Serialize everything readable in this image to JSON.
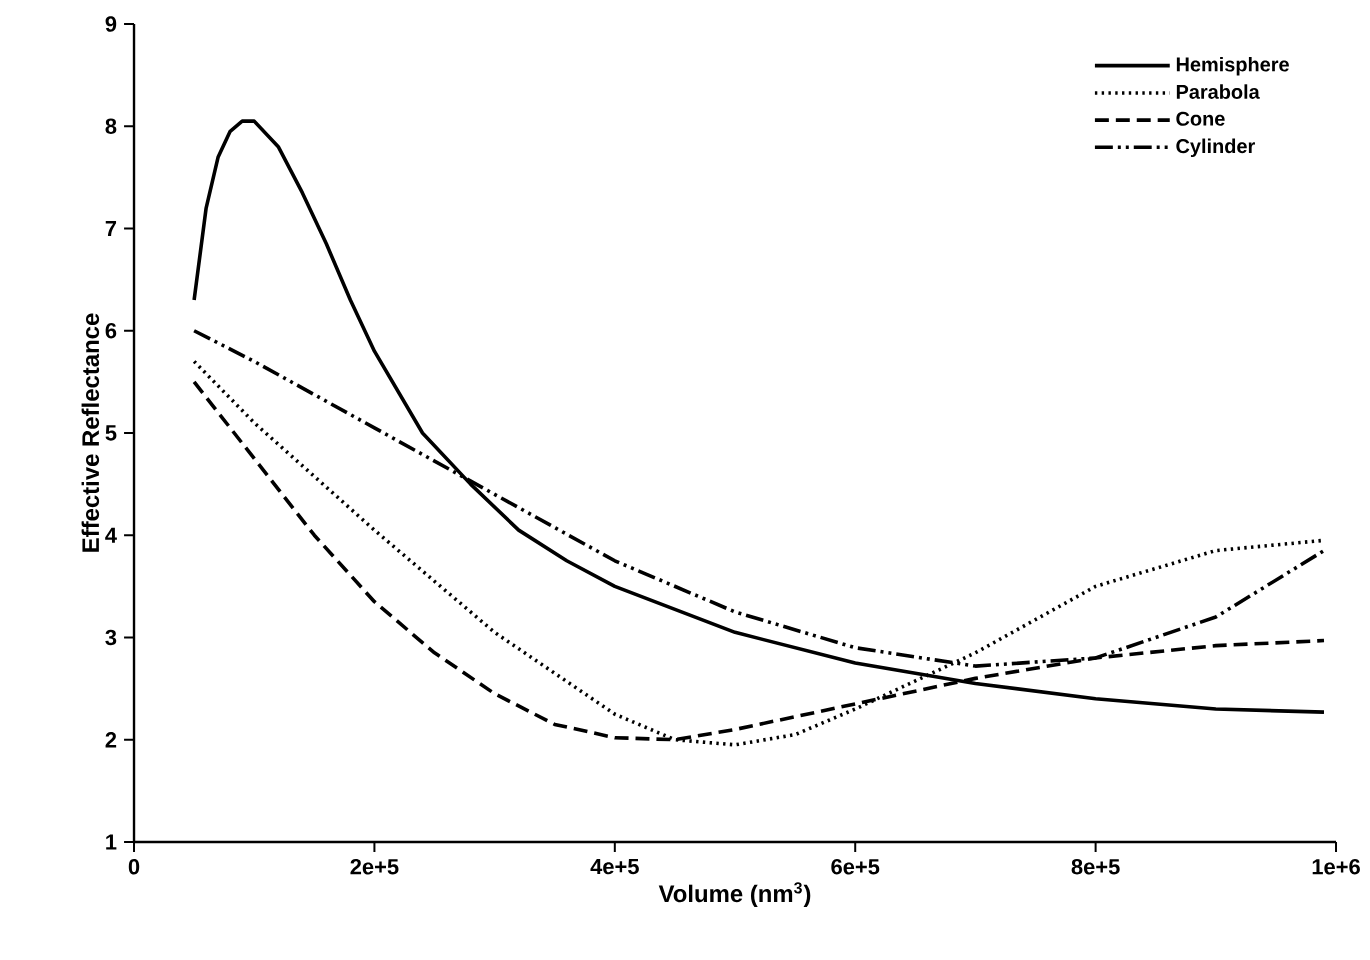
{
  "chart_data": {
    "type": "line",
    "xlabel": "Volume (nm$^{3}$)",
    "ylabel": "Effective Reflectance",
    "xlim": [
      0,
      1000000
    ],
    "ylim": [
      1,
      9
    ],
    "xticks": [
      0,
      {
        "value": 200000,
        "label": "2e+5"
      },
      {
        "value": 400000,
        "label": "4e+5"
      },
      {
        "value": 600000,
        "label": "6e+5"
      },
      {
        "value": 800000,
        "label": "8e+5"
      },
      {
        "value": 1000000,
        "label": "1e+6"
      }
    ],
    "yticks": [
      1,
      2,
      3,
      4,
      5,
      6,
      7,
      8,
      9
    ],
    "grid": false,
    "legend": "top right",
    "marker": "none",
    "series": [
      {
        "name": "Hemisphere",
        "color": "#000000",
        "line_style": "solid",
        "x": [
          50000,
          60000,
          70000,
          80000,
          90000,
          100000,
          120000,
          140000,
          160000,
          180000,
          200000,
          240000,
          280000,
          320000,
          360000,
          400000,
          500000,
          600000,
          700000,
          800000,
          900000,
          990000
        ],
        "values": [
          6.3,
          7.2,
          7.7,
          7.95,
          8.05,
          8.05,
          7.8,
          7.35,
          6.85,
          6.3,
          5.8,
          5.0,
          4.5,
          4.05,
          3.75,
          3.5,
          3.05,
          2.75,
          2.55,
          2.4,
          2.3,
          2.27
        ]
      },
      {
        "name": "Parabola",
        "color": "#000000",
        "line_style": "dotted",
        "x": [
          50000,
          100000,
          200000,
          300000,
          400000,
          450000,
          500000,
          550000,
          600000,
          700000,
          800000,
          900000,
          990000
        ],
        "values": [
          5.7,
          5.1,
          4.05,
          3.05,
          2.25,
          2.0,
          1.95,
          2.05,
          2.3,
          2.85,
          3.5,
          3.85,
          3.95
        ]
      },
      {
        "name": "Cone",
        "color": "#000000",
        "line_style": "dashed",
        "x": [
          50000,
          100000,
          150000,
          200000,
          250000,
          300000,
          350000,
          400000,
          450000,
          500000,
          600000,
          700000,
          800000,
          900000,
          990000
        ],
        "values": [
          5.5,
          4.75,
          4.0,
          3.35,
          2.85,
          2.45,
          2.15,
          2.02,
          2.0,
          2.1,
          2.35,
          2.6,
          2.8,
          2.92,
          2.97
        ]
      },
      {
        "name": "Cylinder",
        "color": "#000000",
        "line_style": "dashdotdotted",
        "x": [
          50000,
          100000,
          200000,
          300000,
          400000,
          500000,
          600000,
          700000,
          800000,
          900000,
          990000
        ],
        "values": [
          6.0,
          5.7,
          5.05,
          4.4,
          3.75,
          3.25,
          2.9,
          2.72,
          2.8,
          3.2,
          3.85
        ]
      }
    ]
  }
}
